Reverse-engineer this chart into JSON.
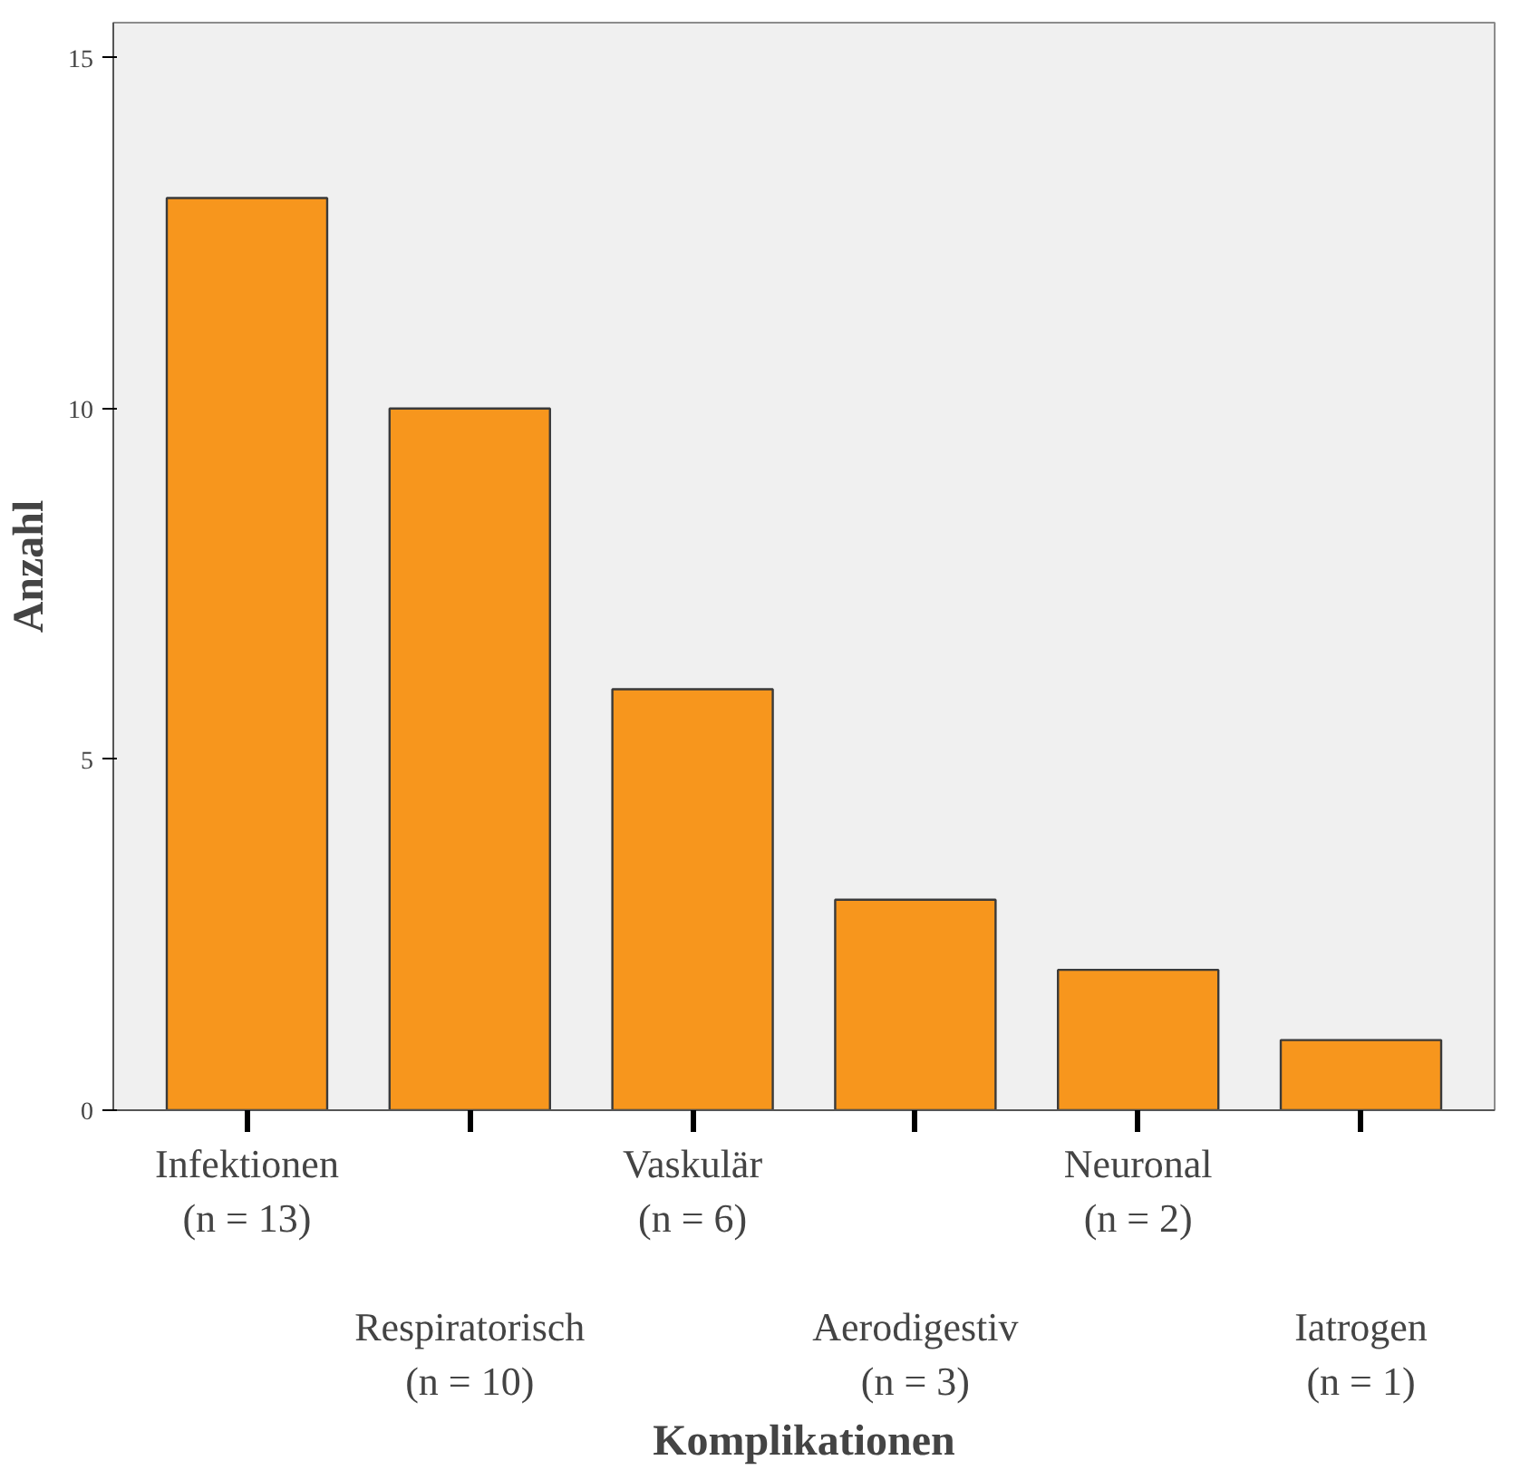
{
  "chart_data": {
    "type": "bar",
    "xlabel": "Komplikationen",
    "ylabel": "Anzahl",
    "categories": [
      "Infektionen\n(n = 13)",
      "Respiratorisch\n(n = 10)",
      "Vaskulär\n(n = 6)",
      "Aerodigestiv\n(n = 3)",
      "Neuronal\n(n = 2)",
      "Iatrogen\n(n = 1)"
    ],
    "values": [
      13,
      10,
      6,
      3,
      2,
      1
    ],
    "color": "#f7961d",
    "ylim": [
      0,
      15.5
    ],
    "yticks": [
      0,
      5,
      10,
      15
    ],
    "grid": false
  }
}
